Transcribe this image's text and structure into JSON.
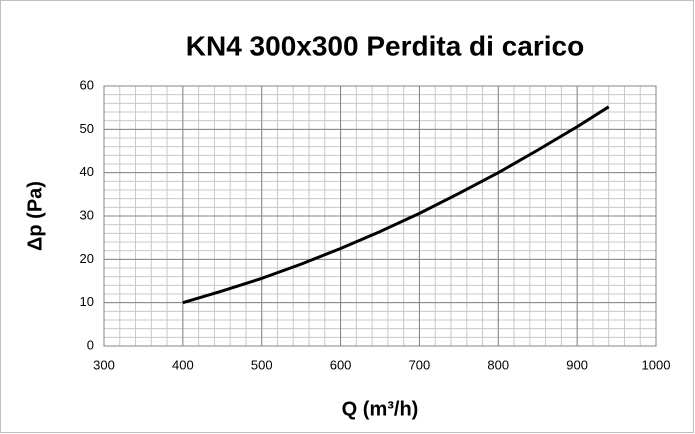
{
  "chart_data": {
    "type": "line",
    "title": "KN4 300x300  Perdita di carico",
    "x_label": "Q (m³/h)",
    "y_label": "Δp (Pa)",
    "x": [
      400,
      450,
      500,
      550,
      600,
      650,
      700,
      750,
      800,
      850,
      900,
      940
    ],
    "series": [
      {
        "name": "Δp",
        "color": "#000000",
        "values": [
          10,
          12.7,
          15.6,
          18.9,
          22.5,
          26.4,
          30.6,
          35.2,
          40,
          45.2,
          50.6,
          55.2
        ]
      }
    ],
    "xlim": [
      300,
      1000
    ],
    "xticks": [
      300,
      400,
      500,
      600,
      700,
      800,
      900,
      1000
    ],
    "ylim": [
      0,
      60
    ],
    "yticks": [
      0,
      10,
      20,
      30,
      40,
      50,
      60
    ],
    "grid": true,
    "minor_step": {
      "x": 20,
      "y": 2
    }
  }
}
